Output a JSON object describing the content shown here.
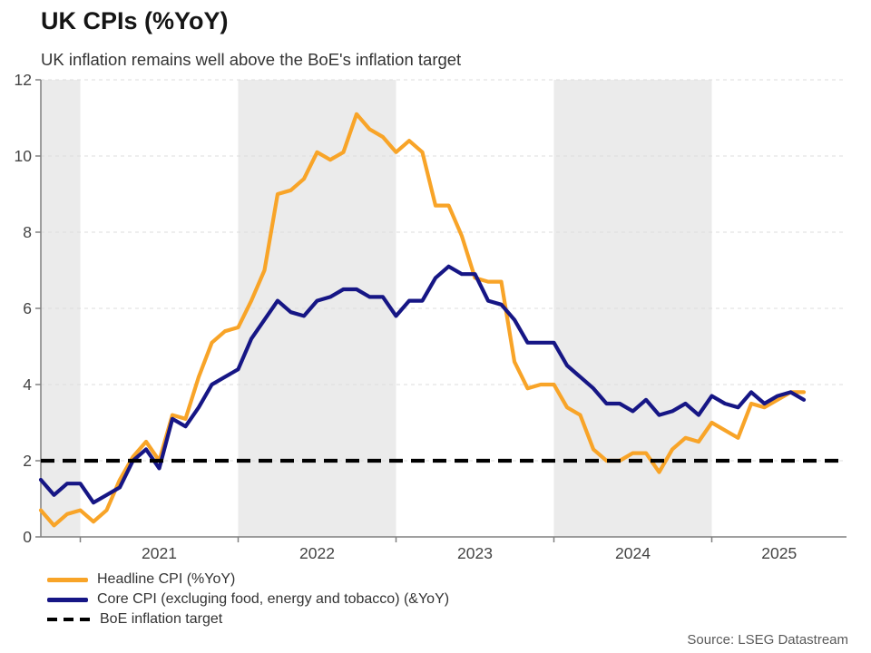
{
  "header": {
    "title": "UK CPIs (%YoY)",
    "subtitle": "UK inflation remains well above the BoE's inflation target"
  },
  "source": "Source: LSEG Datastream",
  "legend": [
    {
      "id": "headline",
      "label": "Headline CPI (%YoY)",
      "color": "#F8A428",
      "style": "solid"
    },
    {
      "id": "core",
      "label": "Core CPI (excluging food, energy and tobacco) (&YoY)",
      "color": "#161685",
      "style": "solid"
    },
    {
      "id": "target",
      "label": "BoE inflation target",
      "color": "#000000",
      "style": "dashed"
    }
  ],
  "colors": {
    "headline": "#F8A428",
    "core": "#161685",
    "target": "#000000",
    "band": "#EBEBEB",
    "grid": "#DCDCDC",
    "axis": "#808080",
    "tick_label": "#444444"
  },
  "chart_data": {
    "type": "line",
    "title": "UK CPIs (%YoY)",
    "subtitle": "UK inflation remains well above the BoE's inflation target",
    "xlabel": "",
    "ylabel": "",
    "ylim": [
      0,
      12
    ],
    "y_ticks": [
      0,
      2,
      4,
      6,
      8,
      10,
      12
    ],
    "x_tick_labels": [
      "2021",
      "2022",
      "2023",
      "2024",
      "2025"
    ],
    "grid": "horizontal-dashed",
    "legend_position": "bottom-left",
    "shaded_year_bands": [
      "2020",
      "2022",
      "2024"
    ],
    "target_line": {
      "label": "BoE inflation target",
      "value": 2
    },
    "months": [
      "2020-10",
      "2020-11",
      "2020-12",
      "2021-01",
      "2021-02",
      "2021-03",
      "2021-04",
      "2021-05",
      "2021-06",
      "2021-07",
      "2021-08",
      "2021-09",
      "2021-10",
      "2021-11",
      "2021-12",
      "2022-01",
      "2022-02",
      "2022-03",
      "2022-04",
      "2022-05",
      "2022-06",
      "2022-07",
      "2022-08",
      "2022-09",
      "2022-10",
      "2022-11",
      "2022-12",
      "2023-01",
      "2023-02",
      "2023-03",
      "2023-04",
      "2023-05",
      "2023-06",
      "2023-07",
      "2023-08",
      "2023-09",
      "2023-10",
      "2023-11",
      "2023-12",
      "2024-01",
      "2024-02",
      "2024-03",
      "2024-04",
      "2024-05",
      "2024-06",
      "2024-07",
      "2024-08",
      "2024-09",
      "2024-10",
      "2024-11",
      "2024-12",
      "2025-01",
      "2025-02",
      "2025-03",
      "2025-04",
      "2025-05",
      "2025-06",
      "2025-07",
      "2025-08"
    ],
    "series": [
      {
        "id": "headline",
        "name": "Headline CPI (%YoY)",
        "color": "#F8A428",
        "values": [
          0.7,
          0.3,
          0.6,
          0.7,
          0.4,
          0.7,
          1.5,
          2.1,
          2.5,
          2.0,
          3.2,
          3.1,
          4.2,
          5.1,
          5.4,
          5.5,
          6.2,
          7.0,
          9.0,
          9.1,
          9.4,
          10.1,
          9.9,
          10.1,
          11.1,
          10.7,
          10.5,
          10.1,
          10.4,
          10.1,
          8.7,
          8.7,
          7.9,
          6.8,
          6.7,
          6.7,
          4.6,
          3.9,
          4.0,
          4.0,
          3.4,
          3.2,
          2.3,
          2.0,
          2.0,
          2.2,
          2.2,
          1.7,
          2.3,
          2.6,
          2.5,
          3.0,
          2.8,
          2.6,
          3.5,
          3.4,
          3.6,
          3.8,
          3.8
        ]
      },
      {
        "id": "core",
        "name": "Core CPI (excluging food, energy and tobacco) (&YoY)",
        "color": "#161685",
        "values": [
          1.5,
          1.1,
          1.4,
          1.4,
          0.9,
          1.1,
          1.3,
          2.0,
          2.3,
          1.8,
          3.1,
          2.9,
          3.4,
          4.0,
          4.2,
          4.4,
          5.2,
          5.7,
          6.2,
          5.9,
          5.8,
          6.2,
          6.3,
          6.5,
          6.5,
          6.3,
          6.3,
          5.8,
          6.2,
          6.2,
          6.8,
          7.1,
          6.9,
          6.9,
          6.2,
          6.1,
          5.7,
          5.1,
          5.1,
          5.1,
          4.5,
          4.2,
          3.9,
          3.5,
          3.5,
          3.3,
          3.6,
          3.2,
          3.3,
          3.5,
          3.2,
          3.7,
          3.5,
          3.4,
          3.8,
          3.5,
          3.7,
          3.8,
          3.6
        ]
      }
    ]
  }
}
